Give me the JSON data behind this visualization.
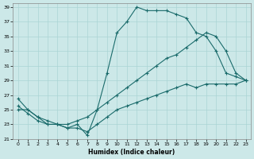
{
  "xlabel": "Humidex (Indice chaleur)",
  "bg_color": "#cce8e8",
  "grid_color": "#aad4d4",
  "line_color": "#1a6b6b",
  "ylim": [
    21,
    39.5
  ],
  "xlim": [
    -0.5,
    23.5
  ],
  "yticks": [
    21,
    23,
    25,
    27,
    29,
    31,
    33,
    35,
    37,
    39
  ],
  "xticks": [
    0,
    1,
    2,
    3,
    4,
    5,
    6,
    7,
    8,
    9,
    10,
    11,
    12,
    13,
    14,
    15,
    16,
    17,
    18,
    19,
    20,
    21,
    22,
    23
  ],
  "line1_x": [
    0,
    1,
    2,
    3,
    4,
    5,
    6,
    7,
    8,
    9,
    10,
    11,
    12,
    13,
    14,
    15,
    16,
    17,
    18,
    19,
    20,
    21,
    22,
    23
  ],
  "line1_y": [
    26.5,
    25.0,
    24.0,
    23.0,
    23.0,
    22.5,
    23.0,
    21.5,
    25.0,
    30.0,
    35.5,
    37.0,
    39.0,
    38.5,
    38.5,
    38.5,
    38.0,
    37.5,
    35.5,
    35.0,
    33.0,
    30.0,
    29.5,
    29.0
  ],
  "line2_x": [
    0,
    1,
    2,
    3,
    4,
    5,
    6,
    7,
    8,
    9,
    10,
    11,
    12,
    13,
    14,
    15,
    16,
    17,
    18,
    19,
    20,
    21,
    22,
    23
  ],
  "line2_y": [
    25.5,
    24.5,
    23.5,
    23.0,
    23.0,
    23.0,
    23.5,
    24.0,
    25.0,
    26.0,
    27.0,
    28.0,
    29.0,
    30.0,
    31.0,
    32.0,
    32.5,
    33.5,
    34.5,
    35.5,
    35.0,
    33.0,
    30.0,
    29.0
  ],
  "line3_x": [
    0,
    1,
    2,
    3,
    4,
    5,
    6,
    7,
    8,
    9,
    10,
    11,
    12,
    13,
    14,
    15,
    16,
    17,
    18,
    19,
    20,
    21,
    22,
    23
  ],
  "line3_y": [
    25.0,
    25.0,
    24.0,
    23.5,
    23.0,
    22.5,
    22.5,
    22.0,
    23.0,
    24.0,
    25.0,
    25.5,
    26.0,
    26.5,
    27.0,
    27.5,
    28.0,
    28.5,
    28.0,
    28.5,
    28.5,
    28.5,
    28.5,
    29.0
  ]
}
